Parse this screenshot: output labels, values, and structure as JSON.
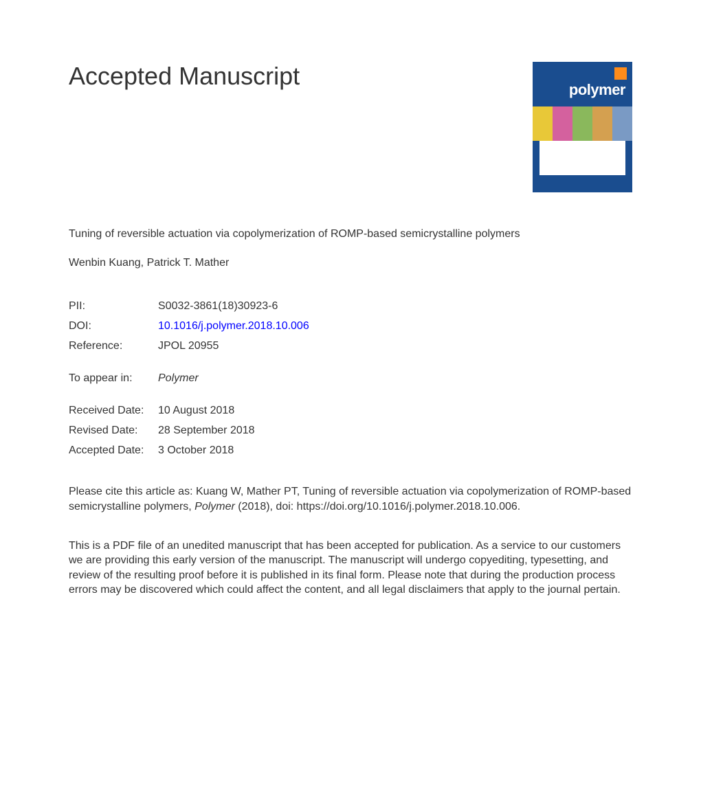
{
  "heading": "Accepted Manuscript",
  "journal_cover": {
    "title": "polymer",
    "bg_color": "#1a4d8f",
    "accent_color": "#ff8c1a",
    "strip_colors": [
      "#e8c838",
      "#d4619e",
      "#8ab85c",
      "#d4a050",
      "#7a9ac4"
    ]
  },
  "article_title": "Tuning of reversible actuation via copolymerization of ROMP-based semicrystalline polymers",
  "authors": "Wenbin Kuang, Patrick T. Mather",
  "meta": {
    "pii": {
      "label": "PII:",
      "value": "S0032-3861(18)30923-6"
    },
    "doi": {
      "label": "DOI:",
      "value": "10.1016/j.polymer.2018.10.006"
    },
    "reference": {
      "label": "Reference:",
      "value": "JPOL 20955"
    },
    "to_appear": {
      "label": "To appear in:",
      "value": "Polymer"
    },
    "received": {
      "label": "Received Date:",
      "value": "10 August 2018"
    },
    "revised": {
      "label": "Revised Date:",
      "value": "28 September 2018"
    },
    "accepted": {
      "label": "Accepted Date:",
      "value": "3 October 2018"
    }
  },
  "citation": {
    "prefix": "Please cite this article as: Kuang W, Mather PT, Tuning of reversible actuation via copolymerization of ROMP-based semicrystalline polymers, ",
    "journal": "Polymer",
    "suffix": " (2018), doi: https://doi.org/10.1016/j.polymer.2018.10.006."
  },
  "disclaimer": "This is a PDF file of an unedited manuscript that has been accepted for publication. As a service to our customers we are providing this early version of the manuscript. The manuscript will undergo copyediting, typesetting, and review of the resulting proof before it is published in its final form. Please note that during the production process errors may be discovered which could affect the content, and all legal disclaimers that apply to the journal pertain."
}
